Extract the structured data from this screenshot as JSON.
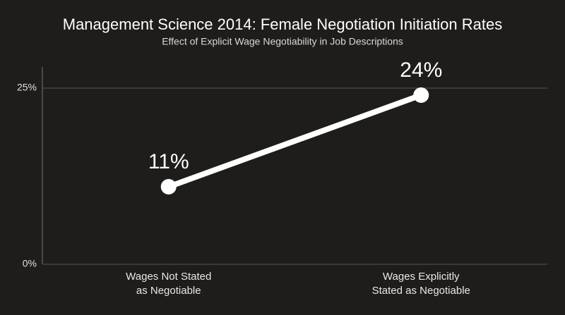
{
  "chart_data": {
    "type": "line",
    "title": "Management Science 2014: Female Negotiation Initiation Rates",
    "subtitle": "Effect of Explicit Wage Negotiability in Job Descriptions",
    "categories": [
      "Wages Not Stated\nas Negotiable",
      "Wages Explicitly\nStated as Negotiable"
    ],
    "values": [
      11,
      24
    ],
    "value_labels": [
      "11%",
      "24%"
    ],
    "color": "#ffffff",
    "ylim": [
      0,
      28
    ],
    "yticks": [
      {
        "value": 0,
        "label": "0%"
      },
      {
        "value": 25,
        "label": "25%"
      }
    ],
    "grid": true
  }
}
